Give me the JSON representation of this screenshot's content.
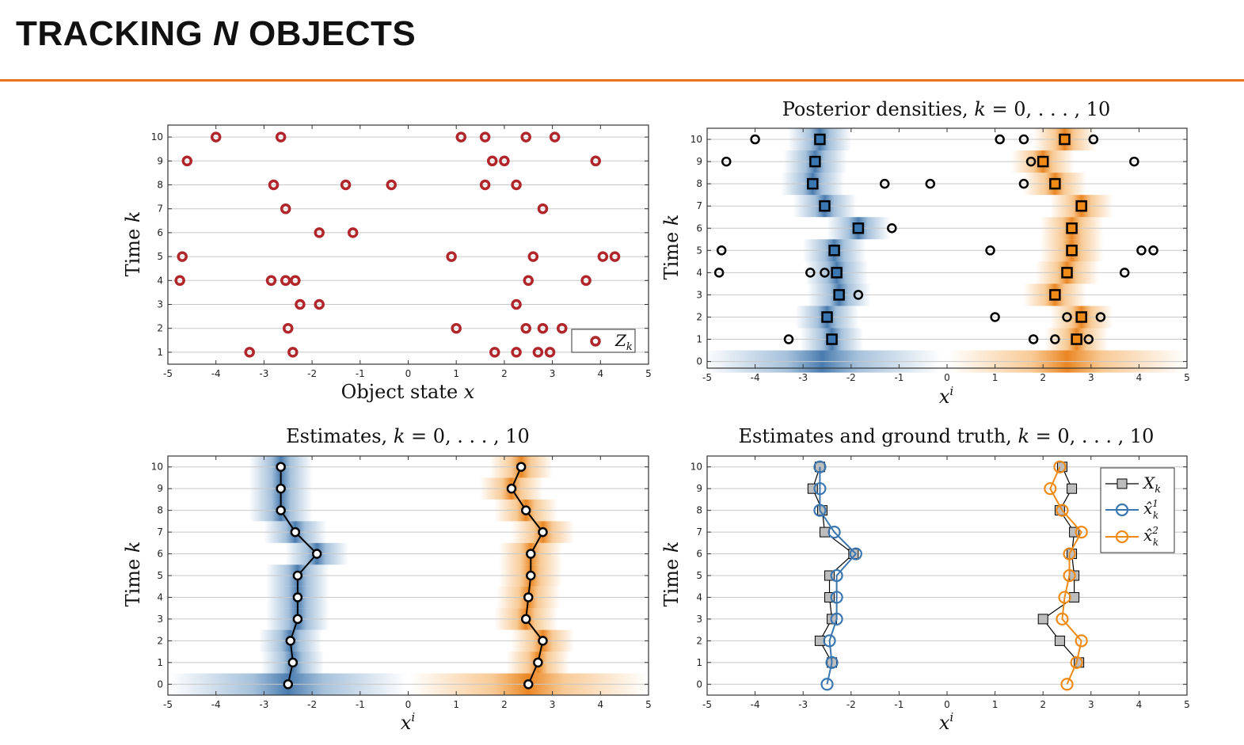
{
  "slide": {
    "title_pre": "TRACKING ",
    "title_italic": "N",
    "title_post": " OBJECTS",
    "accent_color": "#e9741e"
  },
  "colors": {
    "measurement": "#b0262b",
    "object1": "#3a77b0",
    "object2": "#ef8a17",
    "estimate": "#000000",
    "truth_fill": "#bdbdbd"
  },
  "chart_data": [
    {
      "type": "scatter",
      "title": "",
      "xlabel": "Object state x",
      "ylabel": "Time k",
      "xlim": [
        -5,
        5
      ],
      "ylim": [
        0.5,
        10.5
      ],
      "xticks": [
        -5,
        -4,
        -3,
        -2,
        -1,
        0,
        1,
        2,
        3,
        4,
        5
      ],
      "yticks": [
        1,
        2,
        3,
        4,
        5,
        6,
        7,
        8,
        9,
        10
      ],
      "grid": "horizontal",
      "legend": {
        "position": "bottom-right",
        "entries": [
          "Z_k"
        ]
      },
      "series": [
        {
          "name": "Z_k",
          "points": [
            {
              "k": 10,
              "x": [
                -4.0,
                -2.65,
                1.1,
                1.6,
                2.45,
                3.05
              ]
            },
            {
              "k": 9,
              "x": [
                -4.6,
                1.75,
                2.0,
                3.9
              ]
            },
            {
              "k": 8,
              "x": [
                -2.8,
                -1.3,
                -0.35,
                1.6,
                2.25
              ]
            },
            {
              "k": 7,
              "x": [
                -2.55,
                2.8
              ]
            },
            {
              "k": 6,
              "x": [
                -1.85,
                -1.15
              ]
            },
            {
              "k": 5,
              "x": [
                -4.7,
                0.9,
                2.6,
                4.05,
                4.3
              ]
            },
            {
              "k": 4,
              "x": [
                -4.75,
                -2.85,
                -2.55,
                -2.35,
                2.5,
                3.7
              ]
            },
            {
              "k": 3,
              "x": [
                -2.25,
                -1.85,
                2.25
              ]
            },
            {
              "k": 2,
              "x": [
                -2.5,
                1.0,
                2.45,
                2.8,
                3.2
              ]
            },
            {
              "k": 1,
              "x": [
                -3.3,
                -2.4,
                1.8,
                2.25,
                2.7,
                2.95
              ]
            }
          ]
        }
      ]
    },
    {
      "type": "scatter",
      "title": "Posterior densities, k = 0, ..., 10",
      "xlabel": "x^i",
      "ylabel": "Time k",
      "xlim": [
        -5,
        5
      ],
      "ylim": [
        -0.3,
        10.5
      ],
      "xticks": [
        -5,
        -4,
        -3,
        -2,
        -1,
        0,
        1,
        2,
        3,
        4,
        5
      ],
      "yticks": [
        0,
        1,
        2,
        3,
        4,
        5,
        6,
        7,
        8,
        9,
        10
      ],
      "grid": "horizontal",
      "density_bands": "blue and orange shaded posterior density per time step",
      "series": [
        {
          "name": "measurements",
          "points": [
            {
              "k": 10,
              "x": [
                -4.0,
                1.1,
                1.6,
                3.05
              ]
            },
            {
              "k": 9,
              "x": [
                -4.6,
                1.75,
                3.9
              ]
            },
            {
              "k": 8,
              "x": [
                -1.3,
                -0.35,
                1.6
              ]
            },
            {
              "k": 6,
              "x": [
                -1.15
              ]
            },
            {
              "k": 5,
              "x": [
                -4.7,
                0.9,
                4.05,
                4.3
              ]
            },
            {
              "k": 4,
              "x": [
                -4.75,
                -2.85,
                -2.55,
                3.7
              ]
            },
            {
              "k": 3,
              "x": [
                -1.85
              ]
            },
            {
              "k": 2,
              "x": [
                1.0,
                2.5,
                3.2
              ]
            },
            {
              "k": 1,
              "x": [
                -3.3,
                1.8,
                2.25,
                2.95
              ]
            }
          ]
        },
        {
          "name": "object 1 estimate",
          "k": [
            1,
            2,
            3,
            4,
            5,
            6,
            7,
            8,
            9,
            10
          ],
          "x": [
            -2.4,
            -2.5,
            -2.25,
            -2.3,
            -2.35,
            -1.85,
            -2.55,
            -2.8,
            -2.75,
            -2.65
          ]
        },
        {
          "name": "object 2 estimate",
          "k": [
            1,
            2,
            3,
            4,
            5,
            6,
            7,
            8,
            9,
            10
          ],
          "x": [
            2.7,
            2.8,
            2.25,
            2.5,
            2.6,
            2.6,
            2.8,
            2.25,
            2.0,
            2.45
          ]
        }
      ]
    },
    {
      "type": "line",
      "title": "Estimates, k = 0, ..., 10",
      "xlabel": "x^i",
      "ylabel": "Time k",
      "xlim": [
        -5,
        5
      ],
      "ylim": [
        -0.5,
        10.5
      ],
      "xticks": [
        -5,
        -4,
        -3,
        -2,
        -1,
        0,
        1,
        2,
        3,
        4,
        5
      ],
      "yticks": [
        0,
        1,
        2,
        3,
        4,
        5,
        6,
        7,
        8,
        9,
        10
      ],
      "grid": "horizontal",
      "k": [
        0,
        1,
        2,
        3,
        4,
        5,
        6,
        7,
        8,
        9,
        10
      ],
      "series": [
        {
          "name": "object 1",
          "x": [
            -2.5,
            -2.4,
            -2.45,
            -2.3,
            -2.3,
            -2.3,
            -1.9,
            -2.35,
            -2.65,
            -2.65,
            -2.65
          ]
        },
        {
          "name": "object 2",
          "x": [
            2.5,
            2.7,
            2.8,
            2.45,
            2.5,
            2.55,
            2.55,
            2.8,
            2.45,
            2.15,
            2.35
          ]
        }
      ]
    },
    {
      "type": "line",
      "title": "Estimates and ground truth, k = 0, ..., 10",
      "xlabel": "x^i",
      "ylabel": "Time k",
      "xlim": [
        -5,
        5
      ],
      "ylim": [
        -0.5,
        10.5
      ],
      "xticks": [
        -5,
        -4,
        -3,
        -2,
        -1,
        0,
        1,
        2,
        3,
        4,
        5
      ],
      "yticks": [
        0,
        1,
        2,
        3,
        4,
        5,
        6,
        7,
        8,
        9,
        10
      ],
      "grid": "horizontal",
      "legend": {
        "position": "top-right",
        "entries": [
          "X_k",
          "x̂¹_k",
          "x̂²_k"
        ]
      },
      "k": [
        0,
        1,
        2,
        3,
        4,
        5,
        6,
        7,
        8,
        9,
        10
      ],
      "series": [
        {
          "name": "X_k (object 1)",
          "k": [
            1,
            2,
            3,
            4,
            5,
            6,
            7,
            8,
            9,
            10
          ],
          "x": [
            -2.4,
            -2.65,
            -2.4,
            -2.45,
            -2.45,
            -1.95,
            -2.55,
            -2.6,
            -2.8,
            -2.65
          ]
        },
        {
          "name": "X_k (object 2)",
          "k": [
            1,
            2,
            3,
            4,
            5,
            6,
            7,
            8,
            9,
            10
          ],
          "x": [
            2.75,
            2.35,
            2.0,
            2.65,
            2.65,
            2.6,
            2.65,
            2.35,
            2.6,
            2.4
          ]
        },
        {
          "name": "x̂¹_k",
          "x": [
            -2.5,
            -2.4,
            -2.45,
            -2.3,
            -2.3,
            -2.3,
            -1.9,
            -2.35,
            -2.65,
            -2.65,
            -2.65
          ]
        },
        {
          "name": "x̂²_k",
          "x": [
            2.5,
            2.7,
            2.8,
            2.4,
            2.45,
            2.55,
            2.55,
            2.8,
            2.4,
            2.15,
            2.35
          ]
        }
      ]
    }
  ],
  "labels": {
    "time_var": "k",
    "time_word": "Time",
    "object_state": "Object state",
    "x_var": "x",
    "xi_sup": "i",
    "legend_zk": "Z",
    "legend_zk_sub": "k",
    "legend_xk": "X",
    "legend_xk_sub": "k",
    "legend_xhat": "x̂",
    "legend_sub": "k",
    "legend_sup1": "1",
    "legend_sup2": "2",
    "title_posterior": "Posterior densities, ",
    "title_estimates": "Estimates, ",
    "title_truth": "Estimates and ground truth, ",
    "title_range": " = 0, . . . , 10"
  }
}
